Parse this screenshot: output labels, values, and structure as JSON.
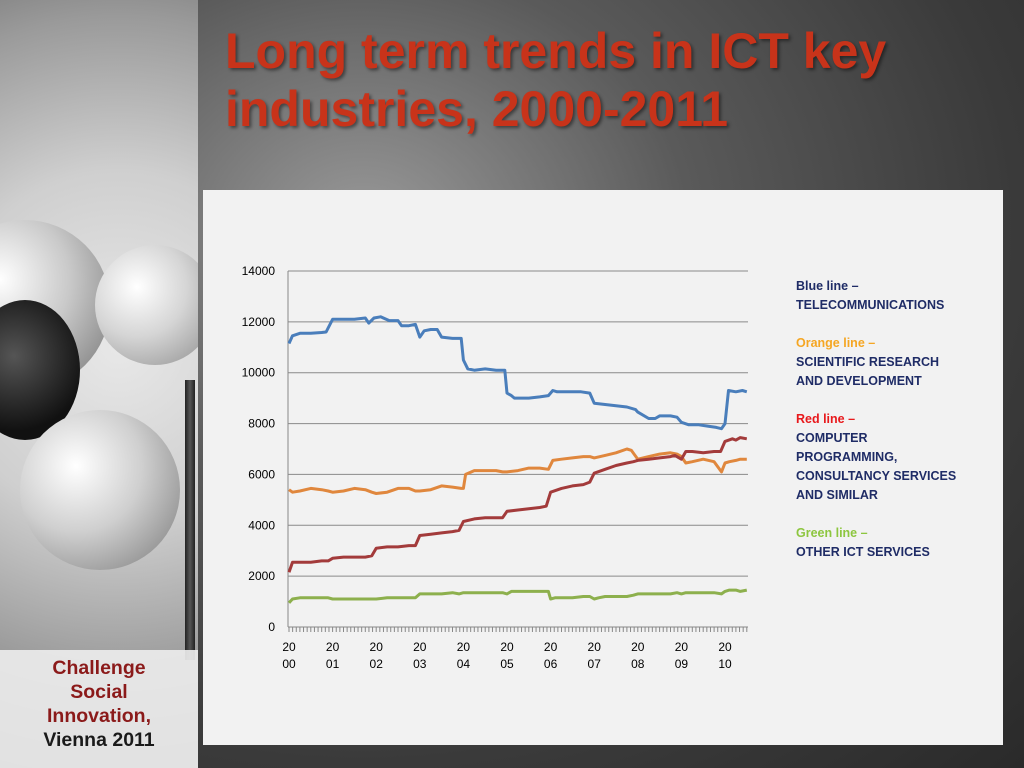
{
  "slide": {
    "title": "Long term trends in ICT key industries, 2000-2011",
    "badge": {
      "line1": "Challenge",
      "line2": "Social",
      "line3": "Innovation,",
      "line4": "Vienna 2011"
    }
  },
  "legend": {
    "blue": {
      "head": "Blue line –",
      "desc": "TELECOMMUNICATIONS",
      "color": "#1f2c66"
    },
    "orange": {
      "head": "Orange line –",
      "desc": "SCIENTIFIC RESEARCH\nAND DEVELOPMENT",
      "color": "#f5a623"
    },
    "red": {
      "head": "Red line –",
      "desc": "COMPUTER\nPROGRAMMING,\nCONSULTANCY SERVICES\nAND SIMILAR",
      "color": "#e8191c"
    },
    "green": {
      "head": "Green line –",
      "desc": "OTHER ICT SERVICES",
      "color": "#8dc63f"
    }
  },
  "chart_data": {
    "type": "line",
    "title": "",
    "xlabel": "",
    "ylabel": "",
    "ylim": [
      0,
      14000
    ],
    "yticks": [
      0,
      2000,
      4000,
      6000,
      8000,
      10000,
      12000,
      14000
    ],
    "xticks": [
      {
        "year": 2000,
        "top": "20",
        "bottom": "00"
      },
      {
        "year": 2001,
        "top": "20",
        "bottom": "01"
      },
      {
        "year": 2002,
        "top": "20",
        "bottom": "02"
      },
      {
        "year": 2003,
        "top": "20",
        "bottom": "03"
      },
      {
        "year": 2004,
        "top": "20",
        "bottom": "04"
      },
      {
        "year": 2005,
        "top": "20",
        "bottom": "05"
      },
      {
        "year": 2006,
        "top": "20",
        "bottom": "06"
      },
      {
        "year": 2007,
        "top": "20",
        "bottom": "07"
      },
      {
        "year": 2008,
        "top": "20",
        "bottom": "08"
      },
      {
        "year": 2009,
        "top": "20",
        "bottom": "09"
      },
      {
        "year": 2010,
        "top": "20",
        "bottom": "10"
      }
    ],
    "xlim": [
      2000,
      2010.55
    ],
    "grid": true,
    "series": [
      {
        "key": "blue",
        "color": "#4a7ebb",
        "points": [
          [
            2000,
            11150
          ],
          [
            2000.08,
            11450
          ],
          [
            2000.25,
            11550
          ],
          [
            2000.5,
            11550
          ],
          [
            2000.75,
            11580
          ],
          [
            2000.85,
            11600
          ],
          [
            2001,
            12100
          ],
          [
            2001.25,
            12100
          ],
          [
            2001.5,
            12100
          ],
          [
            2001.75,
            12150
          ],
          [
            2001.83,
            11950
          ],
          [
            2001.95,
            12150
          ],
          [
            2002.1,
            12200
          ],
          [
            2002.3,
            12050
          ],
          [
            2002.5,
            12050
          ],
          [
            2002.58,
            11850
          ],
          [
            2002.75,
            11850
          ],
          [
            2002.9,
            11900
          ],
          [
            2003,
            11400
          ],
          [
            2003.1,
            11650
          ],
          [
            2003.25,
            11700
          ],
          [
            2003.4,
            11700
          ],
          [
            2003.5,
            11400
          ],
          [
            2003.75,
            11350
          ],
          [
            2003.95,
            11350
          ],
          [
            2004,
            10500
          ],
          [
            2004.1,
            10150
          ],
          [
            2004.25,
            10100
          ],
          [
            2004.5,
            10150
          ],
          [
            2004.75,
            10100
          ],
          [
            2004.95,
            10100
          ],
          [
            2005,
            9200
          ],
          [
            2005.1,
            9100
          ],
          [
            2005.17,
            9000
          ],
          [
            2005.5,
            9000
          ],
          [
            2005.75,
            9050
          ],
          [
            2005.95,
            9100
          ],
          [
            2006.05,
            9300
          ],
          [
            2006.15,
            9250
          ],
          [
            2006.4,
            9250
          ],
          [
            2006.7,
            9250
          ],
          [
            2006.9,
            9200
          ],
          [
            2007,
            8800
          ],
          [
            2007.25,
            8750
          ],
          [
            2007.5,
            8700
          ],
          [
            2007.75,
            8650
          ],
          [
            2007.95,
            8550
          ],
          [
            2008,
            8450
          ],
          [
            2008.25,
            8200
          ],
          [
            2008.4,
            8200
          ],
          [
            2008.5,
            8300
          ],
          [
            2008.75,
            8300
          ],
          [
            2008.9,
            8250
          ],
          [
            2009,
            8050
          ],
          [
            2009.17,
            7950
          ],
          [
            2009.4,
            7950
          ],
          [
            2009.6,
            7900
          ],
          [
            2009.8,
            7850
          ],
          [
            2009.92,
            7800
          ],
          [
            2010,
            8000
          ],
          [
            2010.08,
            9300
          ],
          [
            2010.25,
            9250
          ],
          [
            2010.4,
            9300
          ],
          [
            2010.5,
            9250
          ]
        ]
      },
      {
        "key": "orange",
        "color": "#e0873d",
        "points": [
          [
            2000,
            5400
          ],
          [
            2000.08,
            5300
          ],
          [
            2000.25,
            5350
          ],
          [
            2000.5,
            5450
          ],
          [
            2000.75,
            5400
          ],
          [
            2000.9,
            5350
          ],
          [
            2001,
            5300
          ],
          [
            2001.25,
            5350
          ],
          [
            2001.5,
            5450
          ],
          [
            2001.75,
            5400
          ],
          [
            2001.9,
            5300
          ],
          [
            2002,
            5250
          ],
          [
            2002.25,
            5300
          ],
          [
            2002.5,
            5450
          ],
          [
            2002.75,
            5450
          ],
          [
            2002.9,
            5350
          ],
          [
            2003,
            5350
          ],
          [
            2003.25,
            5400
          ],
          [
            2003.5,
            5550
          ],
          [
            2003.75,
            5500
          ],
          [
            2003.95,
            5450
          ],
          [
            2004,
            5450
          ],
          [
            2004.05,
            6000
          ],
          [
            2004.25,
            6150
          ],
          [
            2004.5,
            6150
          ],
          [
            2004.75,
            6150
          ],
          [
            2004.9,
            6100
          ],
          [
            2005,
            6100
          ],
          [
            2005.25,
            6150
          ],
          [
            2005.5,
            6250
          ],
          [
            2005.75,
            6250
          ],
          [
            2005.95,
            6200
          ],
          [
            2006.05,
            6550
          ],
          [
            2006.25,
            6600
          ],
          [
            2006.5,
            6650
          ],
          [
            2006.75,
            6700
          ],
          [
            2006.9,
            6700
          ],
          [
            2007,
            6650
          ],
          [
            2007.25,
            6750
          ],
          [
            2007.5,
            6850
          ],
          [
            2007.75,
            7000
          ],
          [
            2007.85,
            6950
          ],
          [
            2008,
            6600
          ],
          [
            2008.25,
            6700
          ],
          [
            2008.5,
            6800
          ],
          [
            2008.75,
            6850
          ],
          [
            2008.9,
            6800
          ],
          [
            2009,
            6700
          ],
          [
            2009.1,
            6450
          ],
          [
            2009.25,
            6500
          ],
          [
            2009.5,
            6600
          ],
          [
            2009.75,
            6500
          ],
          [
            2009.92,
            6100
          ],
          [
            2010,
            6450
          ],
          [
            2010.1,
            6500
          ],
          [
            2010.25,
            6550
          ],
          [
            2010.35,
            6600
          ],
          [
            2010.5,
            6600
          ]
        ]
      },
      {
        "key": "red",
        "color": "#a33b3b",
        "points": [
          [
            2000,
            2150
          ],
          [
            2000.08,
            2550
          ],
          [
            2000.25,
            2550
          ],
          [
            2000.5,
            2550
          ],
          [
            2000.75,
            2600
          ],
          [
            2000.9,
            2600
          ],
          [
            2001,
            2700
          ],
          [
            2001.25,
            2750
          ],
          [
            2001.5,
            2750
          ],
          [
            2001.75,
            2750
          ],
          [
            2001.9,
            2800
          ],
          [
            2002,
            3100
          ],
          [
            2002.25,
            3150
          ],
          [
            2002.5,
            3150
          ],
          [
            2002.75,
            3200
          ],
          [
            2002.9,
            3200
          ],
          [
            2003,
            3600
          ],
          [
            2003.25,
            3650
          ],
          [
            2003.5,
            3700
          ],
          [
            2003.75,
            3750
          ],
          [
            2003.9,
            3800
          ],
          [
            2004,
            4150
          ],
          [
            2004.25,
            4250
          ],
          [
            2004.5,
            4300
          ],
          [
            2004.75,
            4300
          ],
          [
            2004.9,
            4300
          ],
          [
            2005,
            4550
          ],
          [
            2005.25,
            4600
          ],
          [
            2005.5,
            4650
          ],
          [
            2005.75,
            4700
          ],
          [
            2005.9,
            4750
          ],
          [
            2006,
            5300
          ],
          [
            2006.25,
            5450
          ],
          [
            2006.5,
            5550
          ],
          [
            2006.75,
            5600
          ],
          [
            2006.9,
            5700
          ],
          [
            2007,
            6050
          ],
          [
            2007.25,
            6200
          ],
          [
            2007.5,
            6350
          ],
          [
            2007.75,
            6450
          ],
          [
            2007.9,
            6500
          ],
          [
            2008,
            6550
          ],
          [
            2008.25,
            6600
          ],
          [
            2008.5,
            6650
          ],
          [
            2008.75,
            6700
          ],
          [
            2008.85,
            6750
          ],
          [
            2009,
            6600
          ],
          [
            2009.1,
            6900
          ],
          [
            2009.25,
            6900
          ],
          [
            2009.5,
            6850
          ],
          [
            2009.75,
            6900
          ],
          [
            2009.9,
            6900
          ],
          [
            2010,
            7300
          ],
          [
            2010.17,
            7400
          ],
          [
            2010.25,
            7350
          ],
          [
            2010.35,
            7450
          ],
          [
            2010.5,
            7400
          ]
        ]
      },
      {
        "key": "green",
        "color": "#8db04d",
        "points": [
          [
            2000,
            950
          ],
          [
            2000.08,
            1100
          ],
          [
            2000.25,
            1150
          ],
          [
            2000.5,
            1150
          ],
          [
            2000.75,
            1150
          ],
          [
            2000.9,
            1150
          ],
          [
            2001,
            1100
          ],
          [
            2001.25,
            1100
          ],
          [
            2001.5,
            1100
          ],
          [
            2001.75,
            1100
          ],
          [
            2001.9,
            1100
          ],
          [
            2002,
            1100
          ],
          [
            2002.25,
            1150
          ],
          [
            2002.5,
            1150
          ],
          [
            2002.75,
            1150
          ],
          [
            2002.9,
            1150
          ],
          [
            2003,
            1300
          ],
          [
            2003.25,
            1300
          ],
          [
            2003.5,
            1300
          ],
          [
            2003.75,
            1350
          ],
          [
            2003.9,
            1300
          ],
          [
            2004,
            1350
          ],
          [
            2004.25,
            1350
          ],
          [
            2004.5,
            1350
          ],
          [
            2004.75,
            1350
          ],
          [
            2004.9,
            1350
          ],
          [
            2005,
            1300
          ],
          [
            2005.1,
            1400
          ],
          [
            2005.5,
            1400
          ],
          [
            2005.75,
            1400
          ],
          [
            2005.95,
            1400
          ],
          [
            2006,
            1100
          ],
          [
            2006.1,
            1150
          ],
          [
            2006.25,
            1150
          ],
          [
            2006.5,
            1150
          ],
          [
            2006.75,
            1200
          ],
          [
            2006.9,
            1200
          ],
          [
            2007,
            1100
          ],
          [
            2007.1,
            1150
          ],
          [
            2007.25,
            1200
          ],
          [
            2007.5,
            1200
          ],
          [
            2007.75,
            1200
          ],
          [
            2007.9,
            1250
          ],
          [
            2008,
            1300
          ],
          [
            2008.25,
            1300
          ],
          [
            2008.5,
            1300
          ],
          [
            2008.75,
            1300
          ],
          [
            2008.9,
            1350
          ],
          [
            2009,
            1300
          ],
          [
            2009.1,
            1350
          ],
          [
            2009.25,
            1350
          ],
          [
            2009.5,
            1350
          ],
          [
            2009.75,
            1350
          ],
          [
            2009.92,
            1300
          ],
          [
            2010,
            1400
          ],
          [
            2010.1,
            1450
          ],
          [
            2010.25,
            1450
          ],
          [
            2010.35,
            1400
          ],
          [
            2010.5,
            1450
          ]
        ]
      }
    ]
  }
}
